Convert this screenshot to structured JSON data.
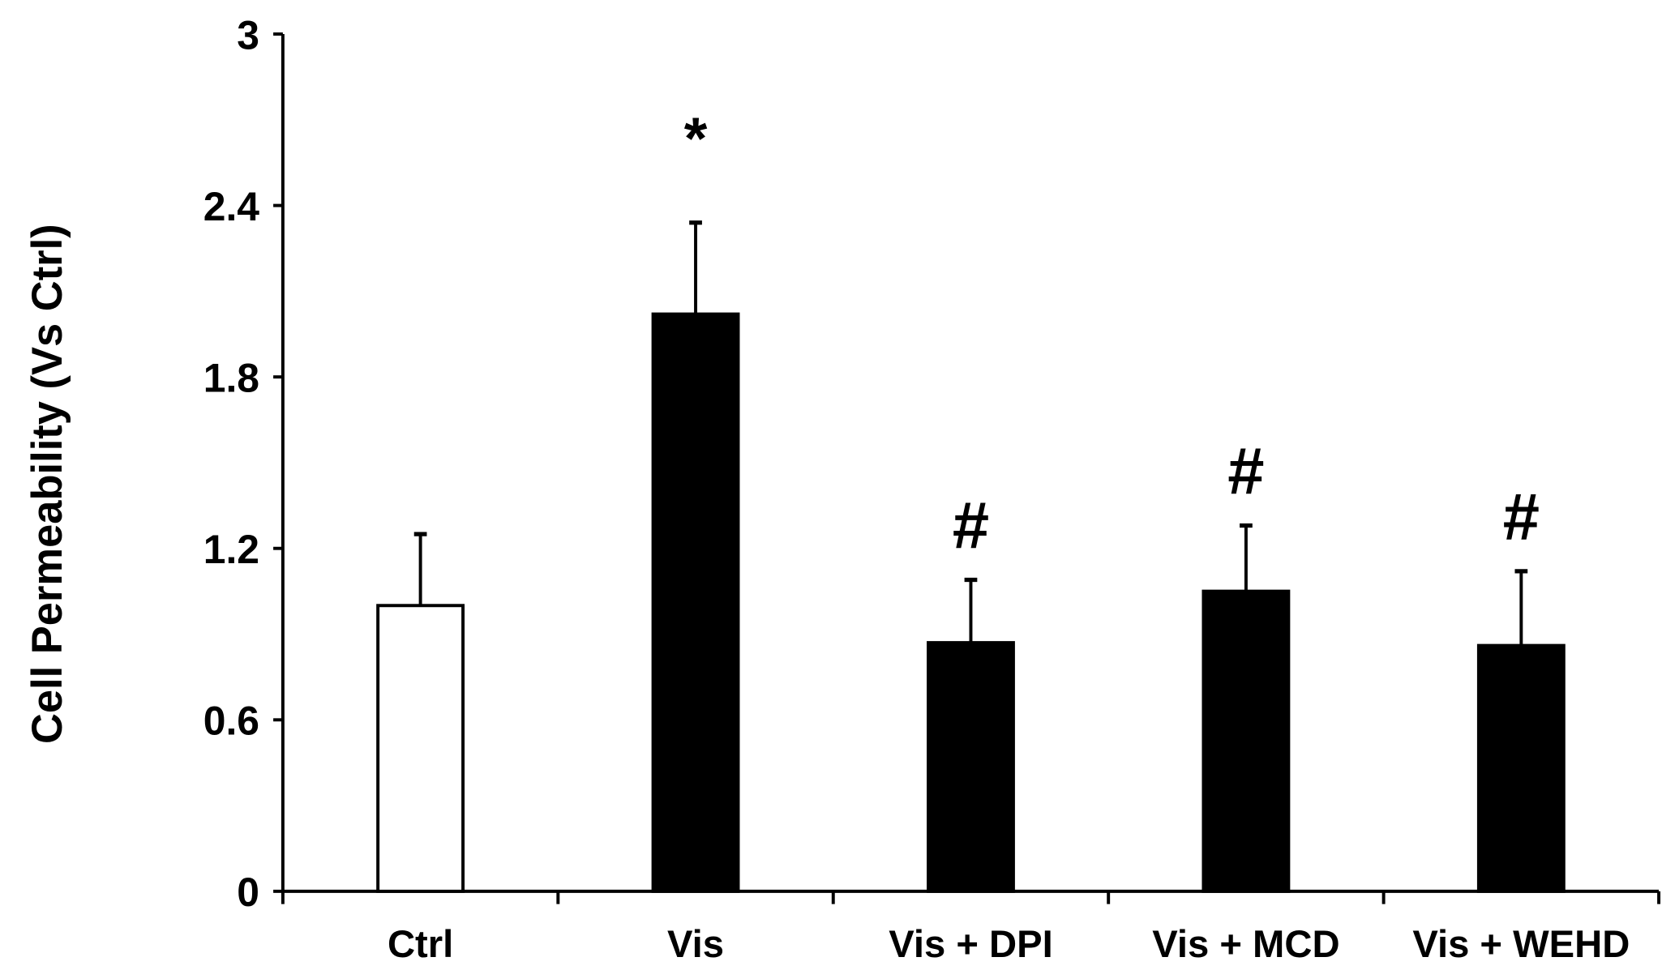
{
  "chart_data": {
    "type": "bar",
    "title": "",
    "xlabel": "",
    "ylabel": "Cell Permeability (Vs Ctrl)",
    "ylim": [
      0,
      3
    ],
    "yticks": [
      "0",
      "0.6",
      "1.2",
      "1.8",
      "2.4",
      "3"
    ],
    "ytick_values": [
      0,
      0.6,
      1.2,
      1.8,
      2.4,
      3
    ],
    "categories": [
      "Ctrl",
      "Vis",
      "Vis + DPI",
      "Vis + MCD",
      "Vis + WEHD"
    ],
    "values": [
      1.0,
      2.02,
      0.87,
      1.05,
      0.86
    ],
    "error_upper": [
      1.25,
      2.34,
      1.09,
      1.28,
      1.12
    ],
    "annotations": [
      "",
      "*",
      "#",
      "#",
      "#"
    ],
    "fill_colors": [
      "#ffffff",
      "#000000",
      "#000000",
      "#000000",
      "#000000"
    ],
    "grid": false
  }
}
